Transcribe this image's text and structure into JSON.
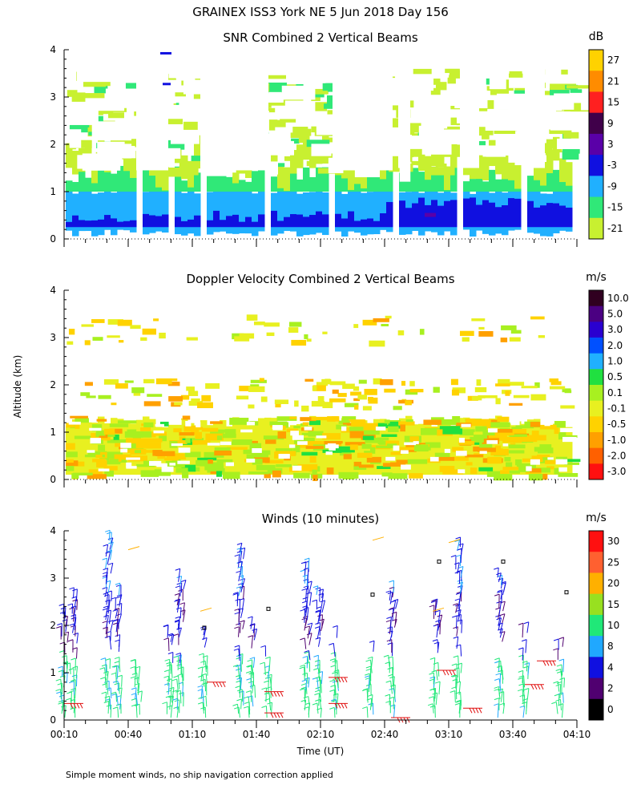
{
  "title": "GRAINEX ISS3 York NE   5 Jun 2018 Day 156",
  "footnote": "Simple moment winds, no ship navigation correction applied",
  "y_axis_label": "Altitude (km)",
  "x_axis_label": "Time (UT)",
  "chart_data": [
    {
      "type": "heatmap",
      "title": "SNR Combined 2 Vertical Beams",
      "colorbar_unit": "dB",
      "colorbar_labels": [
        "27",
        "21",
        "15",
        "9",
        "3",
        "-3",
        "-9",
        "-15",
        "-21"
      ],
      "colorbar_colors": [
        "#ffd200",
        "#ff8c00",
        "#ff2020",
        "#40004a",
        "#5a00a8",
        "#1010e0",
        "#20b0ff",
        "#30e878",
        "#c8f030"
      ],
      "yticks": [
        "0",
        "1",
        "2",
        "3",
        "4"
      ],
      "ylim": [
        0,
        4
      ],
      "xlim": [
        "00:10",
        "04:10"
      ]
    },
    {
      "type": "heatmap",
      "title": "Doppler Velocity Combined 2 Vertical Beams",
      "colorbar_unit": "m/s",
      "colorbar_labels": [
        "10.0",
        "5.0",
        "3.0",
        "2.0",
        "1.0",
        "0.5",
        "0.1",
        "-0.1",
        "-0.5",
        "-1.0",
        "-2.0",
        "-3.0"
      ],
      "colorbar_colors": [
        "#300020",
        "#4b0082",
        "#2a00d0",
        "#0050ff",
        "#20b0ff",
        "#20e040",
        "#a8f020",
        "#e8f020",
        "#ffd200",
        "#ffa000",
        "#ff6000",
        "#ff1010"
      ],
      "yticks": [
        "0",
        "1",
        "2",
        "3",
        "4"
      ],
      "ylim": [
        0,
        4
      ],
      "xlim": [
        "00:10",
        "04:10"
      ]
    },
    {
      "type": "scatter",
      "title": "Winds (10 minutes)",
      "colorbar_unit": "m/s",
      "colorbar_labels": [
        "30",
        "25",
        "20",
        "15",
        "10",
        "8",
        "4",
        "2",
        "0"
      ],
      "colorbar_colors": [
        "#ff1010",
        "#ff6030",
        "#ffb000",
        "#98e020",
        "#20e878",
        "#20a8ff",
        "#1010e0",
        "#500070",
        "#000000"
      ],
      "yticks": [
        "0",
        "1",
        "2",
        "3",
        "4"
      ],
      "ylim": [
        0,
        4
      ],
      "x_ticks": [
        "00:10",
        "00:40",
        "01:10",
        "01:40",
        "02:10",
        "02:40",
        "03:10",
        "03:40",
        "04:10"
      ]
    }
  ]
}
